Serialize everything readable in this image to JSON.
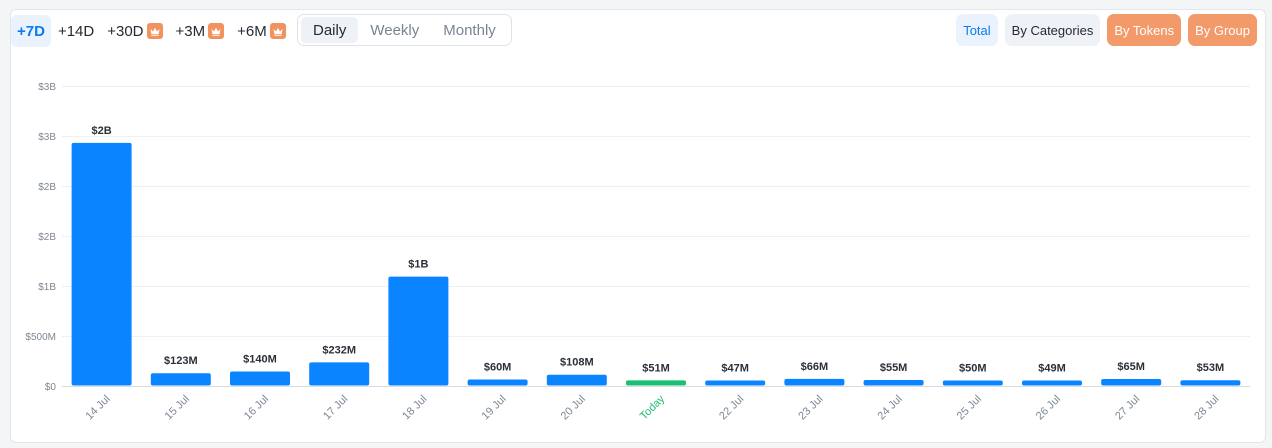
{
  "range_selector": {
    "items": [
      {
        "label": "+7D",
        "active": true,
        "premium": false
      },
      {
        "label": "+14D",
        "active": false,
        "premium": false
      },
      {
        "label": "+30D",
        "active": false,
        "premium": true
      },
      {
        "label": "+3M",
        "active": false,
        "premium": true
      },
      {
        "label": "+6M",
        "active": false,
        "premium": true
      }
    ]
  },
  "granularity": {
    "items": [
      {
        "label": "Daily",
        "active": true
      },
      {
        "label": "Weekly",
        "active": false
      },
      {
        "label": "Monthly",
        "active": false
      }
    ]
  },
  "views": {
    "total": "Total",
    "by_categories": "By Categories",
    "by_tokens": "By Tokens",
    "by_group": "By Group"
  },
  "colors": {
    "bar": "#0a84ff",
    "today_bar": "#1bbf73",
    "accent": "#0a7cf0",
    "premium": "#f39a6b"
  },
  "chart_data": {
    "type": "bar",
    "categories": [
      "14 Jul",
      "15 Jul",
      "16 Jul",
      "17 Jul",
      "18 Jul",
      "19 Jul",
      "20 Jul",
      "Today",
      "22 Jul",
      "23 Jul",
      "24 Jul",
      "25 Jul",
      "26 Jul",
      "27 Jul",
      "28 Jul"
    ],
    "values": [
      2430000000,
      123000000,
      140000000,
      232000000,
      1090000000,
      60000000,
      108000000,
      51000000,
      47000000,
      66000000,
      55000000,
      50000000,
      49000000,
      65000000,
      53000000
    ],
    "data_labels": [
      "$2B",
      "$123M",
      "$140M",
      "$232M",
      "$1B",
      "$60M",
      "$108M",
      "$51M",
      "$47M",
      "$66M",
      "$55M",
      "$50M",
      "$49M",
      "$65M",
      "$53M"
    ],
    "highlight_category": "Today",
    "y_ticks": [
      0,
      500000000,
      1000000000,
      1500000000,
      2000000000,
      2500000000,
      3000000000
    ],
    "y_tick_labels": [
      "$0",
      "$500M",
      "$1B",
      "$2B",
      "$2B",
      "$3B",
      "$3B"
    ],
    "ylim": [
      0,
      3000000000
    ],
    "grid": true,
    "legend": "none",
    "title": "",
    "xlabel": "",
    "ylabel": ""
  }
}
